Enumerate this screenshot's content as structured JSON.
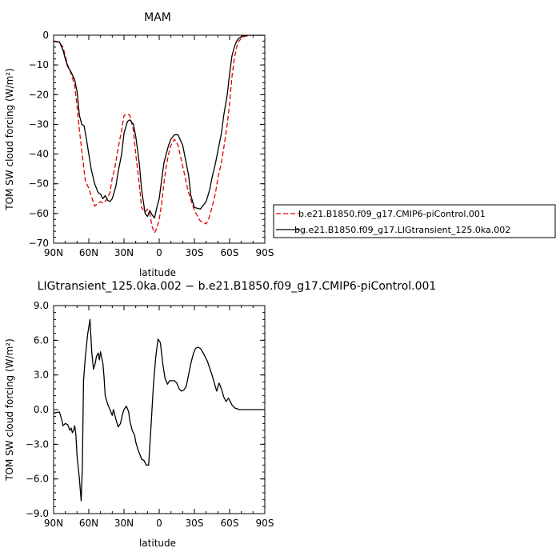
{
  "chart_data": [
    {
      "type": "line",
      "title": "MAM",
      "xlabel": "latitude",
      "ylabel": "TOM SW cloud forcing (W/m²)",
      "xlim": [
        90,
        -90
      ],
      "ylim": [
        -70,
        0
      ],
      "x_ticks": [
        {
          "value": 90,
          "label": "90N"
        },
        {
          "value": 60,
          "label": "60N"
        },
        {
          "value": 30,
          "label": "30N"
        },
        {
          "value": 0,
          "label": "0"
        },
        {
          "value": -30,
          "label": "30S"
        },
        {
          "value": -60,
          "label": "60S"
        },
        {
          "value": -90,
          "label": "90S"
        }
      ],
      "y_ticks": [
        {
          "value": 0,
          "label": "0"
        },
        {
          "value": -10,
          "label": "−10"
        },
        {
          "value": -20,
          "label": "−20"
        },
        {
          "value": -30,
          "label": "−30"
        },
        {
          "value": -40,
          "label": "−40"
        },
        {
          "value": -50,
          "label": "−50"
        },
        {
          "value": -60,
          "label": "−60"
        },
        {
          "value": -70,
          "label": "−70"
        }
      ],
      "legend_position": "right",
      "series": [
        {
          "name": "b.e21.B1850.f09_g17.CMIP6-piControl.001",
          "color": "#e00000",
          "dash": "dashed",
          "x": [
            90,
            85,
            82,
            80,
            78,
            75,
            72,
            70,
            68,
            65,
            63,
            60,
            58,
            55,
            52,
            50,
            48,
            45,
            42,
            40,
            38,
            35,
            32,
            30,
            27,
            25,
            22,
            20,
            17,
            15,
            12,
            10,
            8,
            6,
            4,
            2,
            0,
            -2,
            -4,
            -6,
            -8,
            -10,
            -13,
            -16,
            -20,
            -25,
            -30,
            -35,
            -40,
            -42,
            -45,
            -48,
            -50,
            -53,
            -55,
            -58,
            -60,
            -62,
            -64,
            -66,
            -68,
            -70,
            -72,
            -74,
            -76,
            -78,
            -80,
            -85,
            -90
          ],
          "y": [
            -2.0,
            -2.5,
            -4.0,
            -7.0,
            -10.0,
            -13.0,
            -17.0,
            -24.0,
            -32.0,
            -42.0,
            -49.0,
            -51.5,
            -54.0,
            -57.5,
            -56.5,
            -56.0,
            -56.5,
            -55.5,
            -53.0,
            -48.0,
            -45.0,
            -38.0,
            -32.0,
            -27.0,
            -26.5,
            -27.0,
            -32.0,
            -40.0,
            -50.0,
            -58.0,
            -59.5,
            -58.5,
            -60.0,
            -64.5,
            -66.5,
            -65.0,
            -62.0,
            -57.0,
            -50.0,
            -44.0,
            -40.0,
            -37.0,
            -35.0,
            -37.0,
            -44.0,
            -53.0,
            -59.0,
            -62.5,
            -63.5,
            -62.0,
            -58.0,
            -53.0,
            -48.0,
            -43.0,
            -38.0,
            -30.0,
            -23.0,
            -14.0,
            -8.0,
            -4.0,
            -2.0,
            -1.0,
            -0.5,
            -0.3,
            -0.1,
            0.0,
            0.0,
            0.0,
            0.0
          ]
        },
        {
          "name": "bg.e21.B1850.f09_g17.LIGtransient_125.0ka.002",
          "color": "#000000",
          "dash": "solid",
          "x": [
            90,
            85,
            82,
            80,
            78,
            75,
            72,
            70,
            68,
            66,
            64,
            62,
            60,
            58,
            55,
            52,
            50,
            48,
            46,
            44,
            42,
            40,
            37,
            35,
            32,
            30,
            27,
            25,
            22,
            20,
            17,
            15,
            12,
            10,
            8,
            6,
            4,
            2,
            0,
            -2,
            -4,
            -6,
            -8,
            -10,
            -13,
            -16,
            -20,
            -25,
            -27,
            -30,
            -35,
            -40,
            -43,
            -45,
            -48,
            -50,
            -53,
            -55,
            -58,
            -60,
            -62,
            -64,
            -66,
            -68,
            -70,
            -72,
            -74,
            -76,
            -78,
            -80,
            -85,
            -90
          ],
          "y": [
            -2.0,
            -2.3,
            -5.0,
            -8.0,
            -10.5,
            -12.5,
            -15.0,
            -19.0,
            -27.0,
            -30.0,
            -30.5,
            -35.0,
            -40.0,
            -45.0,
            -50.0,
            -53.0,
            -53.5,
            -55.0,
            -54.0,
            -55.5,
            -56.0,
            -55.0,
            -51.0,
            -46.0,
            -40.0,
            -33.0,
            -29.0,
            -28.5,
            -30.0,
            -34.0,
            -43.0,
            -52.0,
            -60.0,
            -61.0,
            -59.0,
            -60.5,
            -61.5,
            -58.0,
            -55.0,
            -49.0,
            -43.0,
            -40.0,
            -37.0,
            -35.0,
            -33.5,
            -33.5,
            -37.0,
            -47.0,
            -54.0,
            -58.0,
            -58.5,
            -56.0,
            -52.0,
            -48.0,
            -43.0,
            -39.0,
            -33.0,
            -27.0,
            -20.0,
            -13.0,
            -7.0,
            -4.0,
            -2.0,
            -1.0,
            -0.5,
            -0.2,
            -0.1,
            0.0,
            0.0,
            0.0,
            0.0,
            0.0
          ]
        }
      ]
    },
    {
      "type": "line",
      "title": "LIGtransient_125.0ka.002 − b.e21.B1850.f09_g17.CMIP6-piControl.001",
      "xlabel": "latitude",
      "ylabel": "TOM SW cloud forcing (W/m²)",
      "xlim": [
        90,
        -90
      ],
      "ylim": [
        -9,
        9
      ],
      "x_ticks": [
        {
          "value": 90,
          "label": "90N"
        },
        {
          "value": 60,
          "label": "60N"
        },
        {
          "value": 30,
          "label": "30N"
        },
        {
          "value": 0,
          "label": "0"
        },
        {
          "value": -30,
          "label": "30S"
        },
        {
          "value": -60,
          "label": "60S"
        },
        {
          "value": -90,
          "label": "90S"
        }
      ],
      "y_ticks": [
        {
          "value": 9,
          "label": "9.0"
        },
        {
          "value": 6,
          "label": "6.0"
        },
        {
          "value": 3,
          "label": "3.0"
        },
        {
          "value": 0,
          "label": "0.0"
        },
        {
          "value": -3,
          "label": "−3.0"
        },
        {
          "value": -6,
          "label": "−6.0"
        },
        {
          "value": -9,
          "label": "−9.0"
        }
      ],
      "series": [
        {
          "name": "",
          "color": "#000000",
          "dash": "solid",
          "x": [
            90,
            85,
            83,
            82,
            80,
            78,
            76,
            75,
            74,
            73,
            72,
            71,
            70,
            68,
            66.5,
            65.5,
            64.5,
            63,
            61,
            59,
            57.5,
            56,
            54.5,
            53.5,
            52,
            51,
            50,
            48,
            47,
            46,
            44,
            42,
            40,
            39,
            37,
            35,
            33,
            31,
            30,
            28,
            26,
            25,
            23,
            21,
            20,
            18,
            16,
            15,
            13,
            11,
            9,
            7,
            5,
            3,
            1,
            -1,
            -3,
            -5,
            -7,
            -9,
            -11,
            -13,
            -15,
            -17,
            -19,
            -21,
            -23,
            -25,
            -27,
            -29,
            -31,
            -33,
            -35,
            -37,
            -39,
            -41,
            -43,
            -45,
            -47,
            -49,
            -51,
            -53,
            -55,
            -57,
            -59,
            -61,
            -62,
            -63,
            -64,
            -65,
            -66,
            -67,
            -68,
            -70,
            -72,
            -75,
            -80,
            -85,
            -90
          ],
          "y": [
            -0.3,
            -0.2,
            -0.9,
            -1.4,
            -1.2,
            -1.3,
            -1.8,
            -1.6,
            -2.0,
            -1.8,
            -1.4,
            -2.2,
            -4.0,
            -6.0,
            -7.9,
            -5.0,
            2.5,
            4.5,
            6.5,
            7.8,
            5.0,
            3.5,
            4.0,
            4.6,
            4.9,
            4.3,
            5.0,
            4.0,
            2.8,
            1.2,
            0.5,
            0.0,
            -0.5,
            0.0,
            -0.8,
            -1.5,
            -1.2,
            -0.3,
            0.0,
            0.3,
            -0.2,
            -1.0,
            -1.8,
            -2.2,
            -2.8,
            -3.5,
            -4.0,
            -4.3,
            -4.4,
            -4.8,
            -4.8,
            -1.5,
            2.0,
            4.5,
            6.1,
            5.8,
            4.0,
            2.7,
            2.2,
            2.5,
            2.5,
            2.5,
            2.3,
            1.8,
            1.6,
            1.7,
            2.0,
            3.0,
            4.0,
            4.8,
            5.3,
            5.4,
            5.3,
            5.0,
            4.6,
            4.2,
            3.6,
            3.0,
            2.3,
            1.6,
            2.3,
            1.8,
            1.1,
            0.7,
            1.0,
            0.6,
            0.4,
            0.3,
            0.2,
            0.1,
            0.1,
            0.05,
            0.0,
            0.0,
            0.0,
            0.0,
            0.0,
            0.0,
            0.0
          ]
        }
      ]
    }
  ]
}
